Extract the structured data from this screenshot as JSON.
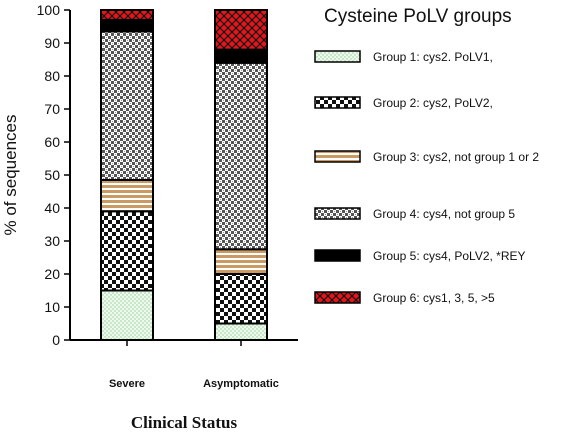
{
  "chart_data": {
    "type": "bar",
    "stacked": true,
    "categories": [
      "Severe",
      "Asymptomatic"
    ],
    "xlabel": "Clinical Status",
    "ylabel": "% of sequences",
    "ylim": [
      0,
      100
    ],
    "yticks": [
      0,
      10,
      20,
      30,
      40,
      50,
      60,
      70,
      80,
      90,
      100
    ],
    "grid": false,
    "legend_title": "Cysteine PoLV groups",
    "legend_position": "right",
    "series": [
      {
        "name": "Group 1: cys2. PoLV1,",
        "values": [
          15,
          5
        ],
        "color": "#e8f5e8",
        "pattern": "dots-green"
      },
      {
        "name": "Group 2: cys2, PoLV2,",
        "values": [
          24,
          15
        ],
        "color": "#ffffff",
        "pattern": "checker"
      },
      {
        "name": "Group 3: cys2, not group 1 or 2",
        "values": [
          9.5,
          7.5
        ],
        "color": "#d2a679",
        "pattern": "tan-stripes"
      },
      {
        "name": "Group 4: cys4, not group 5",
        "values": [
          45,
          56.5
        ],
        "color": "#cccccc",
        "pattern": "fine-check"
      },
      {
        "name": "Group 5: cys4, PoLV2, *REY",
        "values": [
          3.5,
          4
        ],
        "color": "#000000",
        "pattern": "solid-black"
      },
      {
        "name": "Group 6: cys1, 3, 5, >5",
        "values": [
          3,
          12
        ],
        "color": "#e8141b",
        "pattern": "red-diamond"
      }
    ]
  }
}
